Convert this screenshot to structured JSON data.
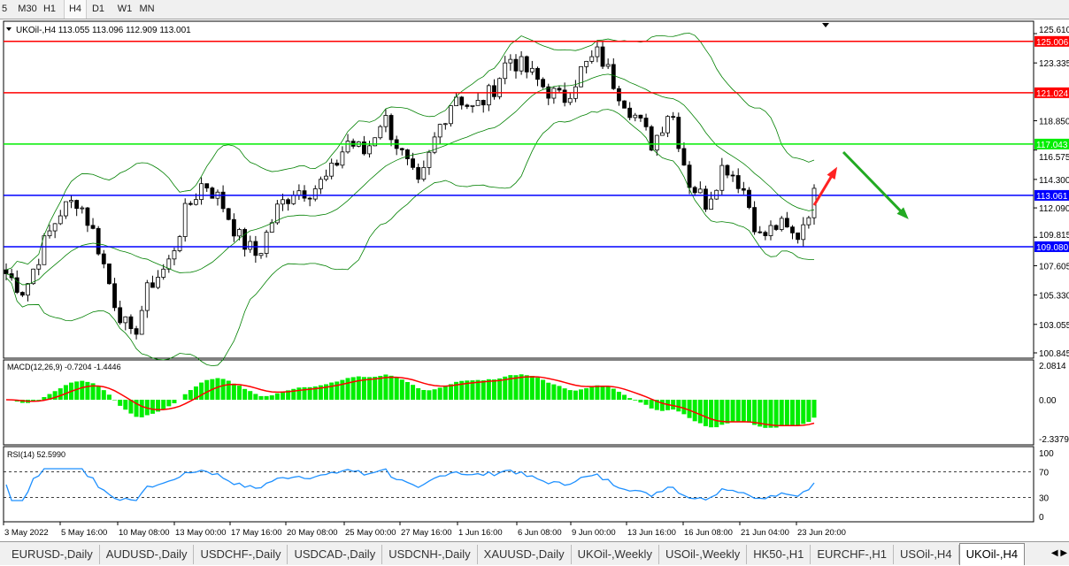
{
  "timeframes": [
    {
      "label": "5"
    },
    {
      "label": "M30"
    },
    {
      "label": "H1"
    },
    {
      "label": "H4",
      "active": true
    },
    {
      "label": "D1"
    },
    {
      "label": "W1"
    },
    {
      "label": "MN"
    }
  ],
  "chart": {
    "symbol_info": "UKOil-,H4  113.055 113.096 112.909 113.001",
    "price_ticks": [
      "125.610",
      "123.335",
      "118.850",
      "116.575",
      "114.300",
      "112.090",
      "109.815",
      "107.605",
      "105.330",
      "103.055",
      "100.845"
    ],
    "price_range": [
      100.845,
      125.61
    ],
    "levels": [
      {
        "price": 125.006,
        "label": "125.006",
        "color": "#ff0000"
      },
      {
        "price": 121.024,
        "label": "121.024",
        "color": "#ff0000"
      },
      {
        "price": 117.043,
        "label": "117.043",
        "color": "#00ee00"
      },
      {
        "price": 113.061,
        "label": "113.061",
        "color": "#0000ff"
      },
      {
        "price": 109.08,
        "label": "109.080",
        "color": "#0000ff"
      }
    ],
    "closes": [
      107,
      105.6,
      109,
      111.8,
      112.8,
      109.7,
      105,
      101.8,
      106.2,
      107.6,
      111.8,
      114.2,
      112.5,
      109.7,
      108.3,
      111.8,
      113.5,
      113.5,
      114.5,
      117.3,
      116.3,
      119.3,
      116.3,
      113.5,
      118,
      121,
      119.7,
      121,
      123.8,
      122.7,
      121.4,
      120.4,
      122.7,
      124.1,
      121.4,
      119.3,
      117,
      120,
      114.2,
      112.5,
      115.6,
      113.8,
      109.7,
      110.8,
      109.7,
      113
    ],
    "arrows": [
      {
        "direction": "up",
        "color": "#ff2222"
      },
      {
        "direction": "down",
        "color": "#22aa22"
      }
    ],
    "macd": {
      "label": "MACD(12,26,9) -0.7204 -1.4446",
      "ticks": [
        "2.0814",
        "0.00",
        "-2.3379"
      ]
    },
    "rsi": {
      "label": "RSI(14) 52.5990",
      "ticks": [
        "100",
        "70",
        "30",
        "0"
      ]
    },
    "time_labels": [
      "3 May 2022",
      "5 May 16:00",
      "10 May 08:00",
      "13 May 00:00",
      "17 May 16:00",
      "20 May 08:00",
      "25 May 00:00",
      "27 May 16:00",
      "1 Jun 16:00",
      "6 Jun 08:00",
      "9 Jun 00:00",
      "13 Jun 16:00",
      "16 Jun 08:00",
      "21 Jun 04:00",
      "23 Jun 20:00"
    ],
    "colors": {
      "bull": "#000000",
      "bands": "#008000",
      "macd_hist": "#00ee00",
      "macd_signal": "#ff0000",
      "rsi": "#1e90ff"
    }
  },
  "tabs": [
    {
      "label": "EURUSD-,Daily"
    },
    {
      "label": "AUDUSD-,Daily"
    },
    {
      "label": "USDCHF-,Daily"
    },
    {
      "label": "USDCAD-,Daily"
    },
    {
      "label": "USDCNH-,Daily"
    },
    {
      "label": "XAUUSD-,Daily"
    },
    {
      "label": "UKOil-,Weekly"
    },
    {
      "label": "USOil-,Weekly"
    },
    {
      "label": "HK50-,H1"
    },
    {
      "label": "EURCHF-,H1"
    },
    {
      "label": "USOil-,H4"
    },
    {
      "label": "UKOil-,H4",
      "active": true
    }
  ]
}
